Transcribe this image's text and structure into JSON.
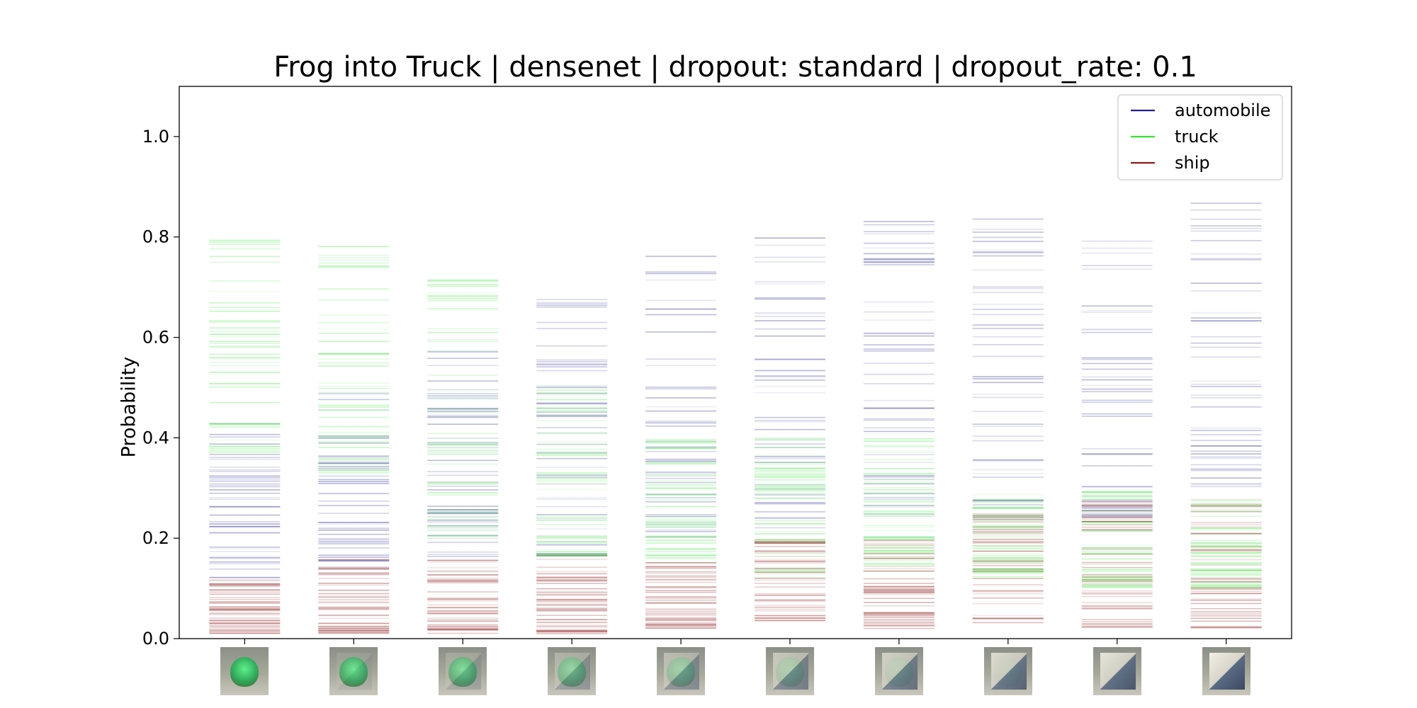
{
  "chart_data": {
    "type": "line",
    "title": "Frog into Truck | densenet | dropout: standard | dropout_rate: 0.1",
    "xlabel": "",
    "ylabel": "Probability",
    "ylim": [
      0.0,
      1.1
    ],
    "yticks": [
      "0.0",
      "0.2",
      "0.4",
      "0.6",
      "0.8",
      "1.0"
    ],
    "grid": false,
    "legend_position": "top-right",
    "x": [
      1,
      2,
      3,
      4,
      5,
      6,
      7,
      8,
      9,
      10
    ],
    "thumbnail_blend": [
      0.0,
      0.11,
      0.22,
      0.33,
      0.44,
      0.56,
      0.67,
      0.78,
      0.89,
      1.0
    ],
    "series": [
      {
        "name": "automobile",
        "color": "#1f1f8c",
        "range_min": [
          0.12,
          0.14,
          0.16,
          0.16,
          0.2,
          0.22,
          0.2,
          0.24,
          0.24,
          0.3
        ],
        "range_max": [
          0.44,
          0.49,
          0.61,
          0.68,
          0.79,
          0.83,
          0.84,
          0.86,
          0.86,
          0.87
        ]
      },
      {
        "name": "truck",
        "color": "#33e633",
        "range_min": [
          0.37,
          0.33,
          0.2,
          0.16,
          0.15,
          0.12,
          0.12,
          0.12,
          0.1,
          0.1
        ],
        "range_max": [
          0.81,
          0.8,
          0.74,
          0.54,
          0.4,
          0.4,
          0.4,
          0.3,
          0.3,
          0.28
        ]
      },
      {
        "name": "ship",
        "color": "#8c1a1a",
        "range_min": [
          0.01,
          0.01,
          0.01,
          0.01,
          0.02,
          0.03,
          0.02,
          0.03,
          0.02,
          0.02
        ],
        "range_max": [
          0.12,
          0.16,
          0.16,
          0.17,
          0.16,
          0.2,
          0.2,
          0.25,
          0.28,
          0.28
        ]
      }
    ]
  }
}
